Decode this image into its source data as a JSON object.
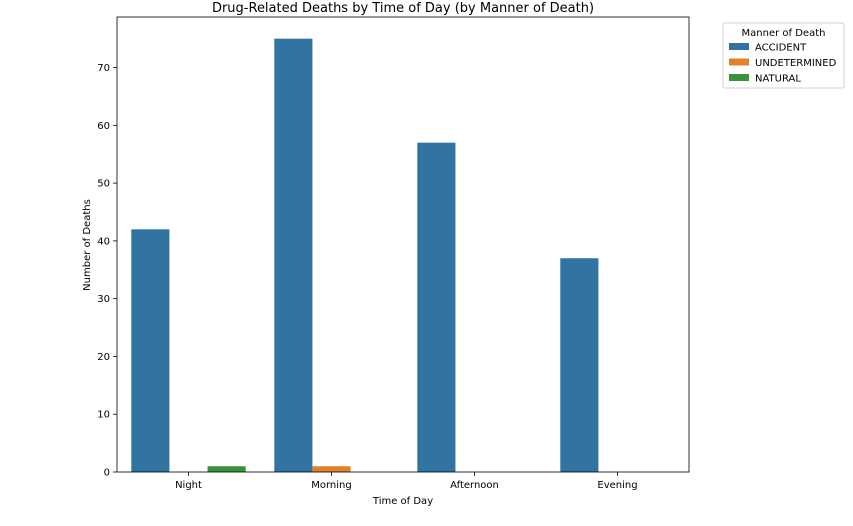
{
  "chart_data": {
    "type": "bar",
    "title": "Drug-Related Deaths by Time of Day (by Manner of Death)",
    "xlabel": "Time of Day",
    "ylabel": "Number of Deaths",
    "categories": [
      "Night",
      "Morning",
      "Afternoon",
      "Evening"
    ],
    "series": [
      {
        "name": "ACCIDENT",
        "values": [
          42,
          75,
          57,
          37
        ],
        "color": "#3274a1"
      },
      {
        "name": "UNDETERMINED",
        "values": [
          0,
          1,
          0,
          0
        ],
        "color": "#e1812c"
      },
      {
        "name": "NATURAL",
        "values": [
          1,
          0,
          0,
          0
        ],
        "color": "#3a923a"
      }
    ],
    "ylim": [
      0,
      78.75
    ],
    "yticks": [
      0,
      10,
      20,
      30,
      40,
      50,
      60,
      70
    ],
    "grid": false,
    "legend": {
      "title": "Manner of Death",
      "placement": "outside-top-right"
    }
  }
}
